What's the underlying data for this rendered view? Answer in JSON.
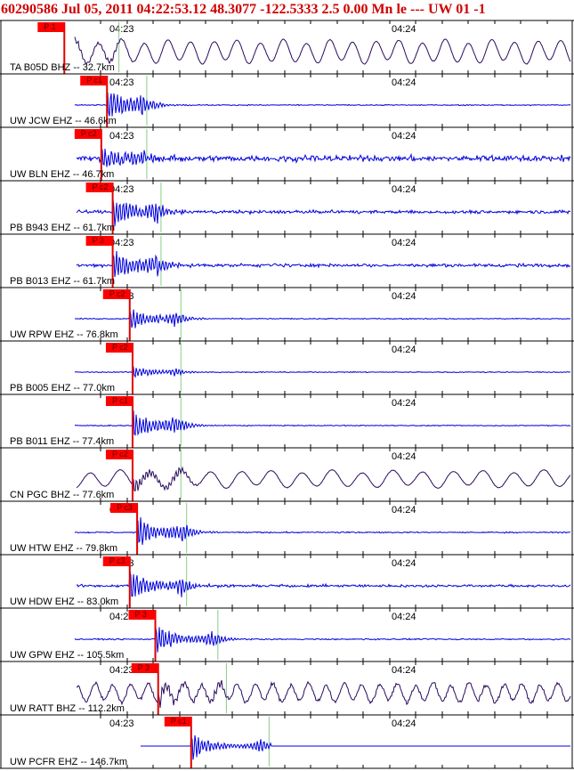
{
  "header": {
    "text": "60290586 Jul 05, 2011 04:22:53.12   48.3077 -122.5333  2.5 0.00 Mn le --- UW 01  -1"
  },
  "colors": {
    "trace_blue": "#0000dd",
    "trace_purple": "#2a0a5e",
    "pick_red": "#ff0000",
    "pick_line_red": "#e00000",
    "s_marker_green": "#88cc88",
    "tick_marks": "#000000",
    "header_text": "#d00000"
  },
  "chart_data": {
    "type": "line",
    "title": "60290586 Jul 05, 2011 04:22:53.12   48.3077 -122.5333  2.5 0.00 Mn le --- UW 01  -1",
    "time_marks": [
      "04:23",
      "04:24"
    ],
    "series": [
      {
        "name": "TA B05D BHZ -- 32.7km",
        "label": "TA B05D BHZ -- 32.7km",
        "pick": "P 1",
        "pick_t": 0.11,
        "green_t": 0.206,
        "color": "purple",
        "amp": 0.75,
        "noise": 0.02,
        "burst": 0.3,
        "style": "longperiod",
        "period": 26
      },
      {
        "name": "UW JCW EHZ -- 46.6km",
        "label": "UW JCW EHZ -- 46.6km",
        "pick": "P c1",
        "pick_t": 0.185,
        "green_t": 0.255,
        "color": "blue",
        "amp": 0.03,
        "noise": 0.03,
        "burst": 0.95,
        "style": "quiet"
      },
      {
        "name": "UW BLN EHZ -- 46.7km",
        "label": "UW BLN EHZ -- 46.7km",
        "pick": "P c2",
        "pick_t": 0.175,
        "green_t": 0.255,
        "color": "blue",
        "amp": 0.18,
        "noise": 0.18,
        "burst": 0.75,
        "style": "noisy"
      },
      {
        "name": "PB B943 EHZ -- 61.7km",
        "label": "PB B943 EHZ -- 61.7km",
        "pick": "P c2",
        "pick_t": 0.195,
        "green_t": 0.28,
        "color": "blue",
        "amp": 0.1,
        "noise": 0.1,
        "burst": 1.0,
        "style": "noisy"
      },
      {
        "name": "PB B013 EHZ -- 61.7km",
        "label": "PB B013 EHZ -- 61.7km",
        "pick": "P 3",
        "pick_t": 0.195,
        "green_t": 0.28,
        "color": "blue",
        "amp": 0.1,
        "noise": 0.1,
        "burst": 1.0,
        "style": "noisy"
      },
      {
        "name": "UW RPW EHZ -- 76.8km",
        "label": "UW RPW EHZ -- 76.8km",
        "pick": "P c2",
        "pick_t": 0.225,
        "green_t": 0.315,
        "color": "blue",
        "amp": 0.03,
        "noise": 0.03,
        "burst": 0.7,
        "style": "quiet"
      },
      {
        "name": "PB B005 EHZ -- 77.0km",
        "label": "PB B005 EHZ -- 77.0km",
        "pick": "P c2",
        "pick_t": 0.23,
        "green_t": 0.315,
        "color": "blue",
        "amp": 0.03,
        "noise": 0.03,
        "burst": 0.35,
        "style": "quiet"
      },
      {
        "name": "PB B011 EHZ -- 77.4km",
        "label": "PB B011 EHZ -- 77.4km",
        "pick": "P c1",
        "pick_t": 0.23,
        "green_t": 0.315,
        "color": "blue",
        "amp": 0.03,
        "noise": 0.03,
        "burst": 0.9,
        "style": "quiet"
      },
      {
        "name": "CN PGC BHZ -- 77.6km",
        "label": "CN PGC BHZ -- 77.6km",
        "pick": "P c2",
        "pick_t": 0.23,
        "green_t": 0.315,
        "color": "purple",
        "amp": 0.55,
        "noise": 0.02,
        "burst": 0.45,
        "style": "longperiod",
        "period": 34
      },
      {
        "name": "UW HTW EHZ -- 79.8km",
        "label": "UW HTW EHZ -- 79.8km",
        "pick": "P c3",
        "pick_t": 0.238,
        "green_t": 0.325,
        "color": "blue",
        "amp": 0.04,
        "noise": 0.04,
        "burst": 0.95,
        "style": "quiet"
      },
      {
        "name": "UW HDW EHZ -- 83.0km",
        "label": "UW HDW EHZ -- 83.0km",
        "pick": "P c3",
        "pick_t": 0.225,
        "green_t": 0.325,
        "color": "blue",
        "amp": 0.05,
        "noise": 0.08,
        "burst": 0.95,
        "style": "noisy"
      },
      {
        "name": "UW GPW EHZ -- 105.5km",
        "label": "UW GPW EHZ -- 105.5km",
        "pick": "P 3",
        "pick_t": 0.27,
        "green_t": 0.38,
        "color": "blue",
        "amp": 0.04,
        "noise": 0.04,
        "burst": 0.9,
        "style": "quiet"
      },
      {
        "name": "UW RATT BHZ -- 112.2km",
        "label": "UW RATT BHZ -- 112.2km",
        "pick": "P 3",
        "pick_t": 0.275,
        "green_t": 0.395,
        "color": "purple",
        "amp": 0.6,
        "noise": 0.12,
        "burst": 0.5,
        "style": "longperiod",
        "period": 20
      },
      {
        "name": "UW PCFR EHZ -- 146.7km",
        "label": "UW PCFR EHZ -- 146.7km",
        "pick": "P c1",
        "pick_t": 0.333,
        "green_t": 0.47,
        "color": "blue",
        "amp": 0.0,
        "noise": 0.0,
        "burst": 0.8,
        "style": "cutoff"
      }
    ]
  }
}
